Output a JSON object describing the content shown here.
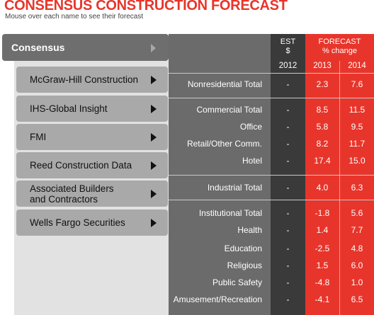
{
  "header": {
    "title": "CONSENSUS CONSTRUCTION FORECAST",
    "subtitle": "Mouse over each name to see their forecast"
  },
  "sidebar": {
    "consensus_label": "Consensus",
    "items": [
      {
        "label": "McGraw-Hill Construction"
      },
      {
        "label": "IHS-Global Insight"
      },
      {
        "label": "FMI"
      },
      {
        "label": "Reed Construction Data"
      },
      {
        "label": "Associated Builders\nand Contractors"
      },
      {
        "label": "Wells Fargo Securities"
      }
    ]
  },
  "table": {
    "est_header_line1": "EST",
    "est_header_line2": "$",
    "forecast_header_line1": "FORECAST",
    "forecast_header_line2": "% change",
    "years": [
      "2012",
      "2013",
      "2014"
    ],
    "rows": [
      {
        "label": "Nonresidential Total",
        "est": "-",
        "y2013": "2.3",
        "y2014": "7.6"
      },
      {
        "label": "Commercial Total",
        "est": "-",
        "y2013": "8.5",
        "y2014": "11.5"
      },
      {
        "label": "Office",
        "est": "-",
        "y2013": "5.8",
        "y2014": "9.5"
      },
      {
        "label": "Retail/Other Comm.",
        "est": "-",
        "y2013": "8.2",
        "y2014": "11.7"
      },
      {
        "label": "Hotel",
        "est": "-",
        "y2013": "17.4",
        "y2014": "15.0"
      },
      {
        "label": "Industrial Total",
        "est": "-",
        "y2013": "4.0",
        "y2014": "6.3"
      },
      {
        "label": "Institutional Total",
        "est": "-",
        "y2013": "-1.8",
        "y2014": "5.6"
      },
      {
        "label": "Health",
        "est": "-",
        "y2013": "1.4",
        "y2014": "7.7"
      },
      {
        "label": "Education",
        "est": "-",
        "y2013": "-2.5",
        "y2014": "4.8"
      },
      {
        "label": "Religious",
        "est": "-",
        "y2013": "1.5",
        "y2014": "6.0"
      },
      {
        "label": "Public Safety",
        "est": "-",
        "y2013": "-4.8",
        "y2014": "1.0"
      },
      {
        "label": "Amusement/Recreation",
        "est": "-",
        "y2013": "-4.1",
        "y2014": "6.5"
      }
    ]
  },
  "colors": {
    "accent_red": "#e8352b",
    "consensus_button": "#6e6e6e",
    "source_button": "#a9a9a9",
    "label_column": "#6b6b6b",
    "est_column": "#3a3a3a"
  }
}
